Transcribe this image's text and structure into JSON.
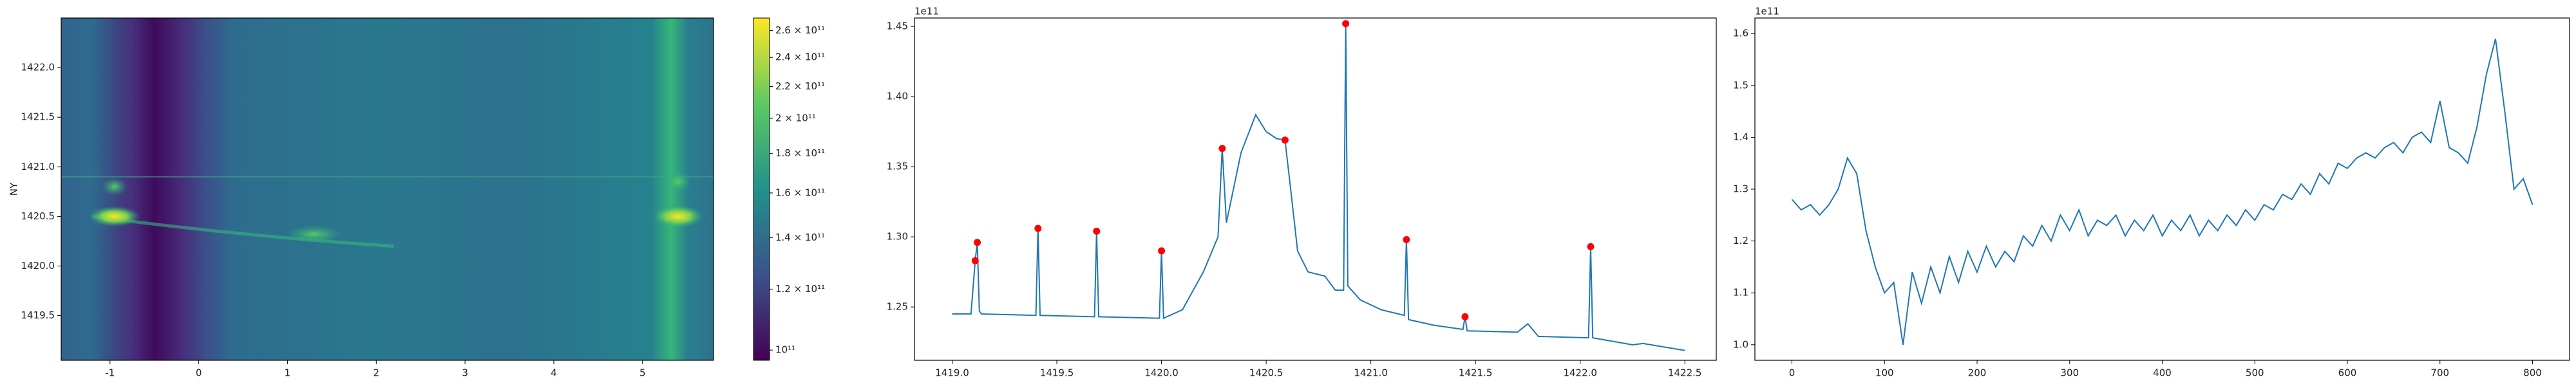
{
  "chart_data": [
    {
      "type": "heatmap",
      "ylabel": "NY",
      "colormap": "viridis",
      "xlim": [
        -1.55,
        5.8
      ],
      "xticks": [
        -1,
        0,
        1,
        2,
        3,
        4,
        5
      ],
      "ylim": [
        1419.05,
        1422.5
      ],
      "yticks": [
        {
          "value": 1419.5,
          "label": "1419.5"
        },
        {
          "value": 1420,
          "label": "1420.0"
        },
        {
          "value": 1420.5,
          "label": "1420.5"
        },
        {
          "value": 1421,
          "label": "1421.0"
        },
        {
          "value": 1421.5,
          "label": "1421.5"
        },
        {
          "value": 1422,
          "label": "1422.0"
        }
      ],
      "colorbar": {
        "scale": "log",
        "lim": [
          97000000000,
          270000000000
        ],
        "ticks": [
          {
            "value": 100000000000,
            "label": "10¹¹"
          },
          {
            "value": 120000000000,
            "label": "1.2 × 10¹¹"
          },
          {
            "value": 140000000000,
            "label": "1.4 × 10¹¹"
          },
          {
            "value": 160000000000,
            "label": "1.6 × 10¹¹"
          },
          {
            "value": 180000000000,
            "label": "1.8 × 10¹¹"
          },
          {
            "value": 200000000000,
            "label": "2 × 10¹¹"
          },
          {
            "value": 220000000000,
            "label": "2.2 × 10¹¹"
          },
          {
            "value": 240000000000,
            "label": "2.4 × 10¹¹"
          },
          {
            "value": 260000000000,
            "label": "2.6 × 10¹¹"
          }
        ]
      }
    },
    {
      "type": "line",
      "offset_text": "1e11",
      "xlim": [
        1418.82,
        1422.65
      ],
      "xticks": [
        {
          "value": 1419,
          "label": "1419.0"
        },
        1419.5,
        {
          "value": 1420,
          "label": "1420.0"
        },
        1420.5,
        {
          "value": 1421,
          "label": "1421.0"
        },
        1421.5,
        {
          "value": 1422,
          "label": "1422.0"
        },
        1422.5
      ],
      "ylim": [
        1.212,
        1.456
      ],
      "yticks": [
        1.25,
        {
          "value": 1.3,
          "label": "1.30"
        },
        1.35,
        {
          "value": 1.4,
          "label": "1.40"
        },
        1.45
      ],
      "series": [
        {
          "type": "line",
          "color": "#1f77b4",
          "x": [
            1419.0,
            1419.09,
            1419.11,
            1419.12,
            1419.13,
            1419.14,
            1419.4,
            1419.41,
            1419.42,
            1419.68,
            1419.69,
            1419.7,
            1419.99,
            1420.0,
            1420.01,
            1420.1,
            1420.2,
            1420.27,
            1420.29,
            1420.31,
            1420.38,
            1420.45,
            1420.5,
            1420.55,
            1420.59,
            1420.62,
            1420.65,
            1420.7,
            1420.78,
            1420.83,
            1420.87,
            1420.88,
            1420.89,
            1420.95,
            1421.05,
            1421.16,
            1421.17,
            1421.18,
            1421.3,
            1421.44,
            1421.45,
            1421.46,
            1421.7,
            1421.75,
            1421.8,
            1422.04,
            1422.05,
            1422.06,
            1422.25,
            1422.3,
            1422.5
          ],
          "values": [
            1.245,
            1.245,
            1.283,
            1.296,
            1.247,
            1.245,
            1.244,
            1.306,
            1.244,
            1.243,
            1.304,
            1.243,
            1.242,
            1.29,
            1.242,
            1.248,
            1.275,
            1.3,
            1.363,
            1.31,
            1.36,
            1.387,
            1.375,
            1.37,
            1.369,
            1.33,
            1.29,
            1.275,
            1.272,
            1.262,
            1.262,
            1.452,
            1.265,
            1.255,
            1.248,
            1.244,
            1.298,
            1.241,
            1.237,
            1.234,
            1.243,
            1.233,
            1.232,
            1.238,
            1.229,
            1.228,
            1.293,
            1.228,
            1.223,
            1.224,
            1.219
          ]
        },
        {
          "type": "scatter",
          "color": "red",
          "x": [
            1419.11,
            1419.12,
            1419.41,
            1419.69,
            1420.0,
            1420.29,
            1420.59,
            1420.88,
            1421.17,
            1421.45,
            1422.05
          ],
          "values": [
            1.283,
            1.296,
            1.306,
            1.304,
            1.29,
            1.363,
            1.369,
            1.452,
            1.298,
            1.243,
            1.293
          ]
        }
      ]
    },
    {
      "type": "line",
      "offset_text": "1e11",
      "xlim": [
        -40,
        840
      ],
      "xticks": [
        0,
        100,
        200,
        300,
        400,
        500,
        600,
        700,
        800
      ],
      "ylim": [
        0.97,
        1.63
      ],
      "yticks": [
        {
          "value": 1,
          "label": "1.0"
        },
        1.1,
        1.2,
        1.3,
        1.4,
        1.5,
        1.6
      ],
      "series": [
        {
          "type": "line",
          "color": "#1f77b4",
          "x": [
            0,
            10,
            20,
            30,
            40,
            50,
            60,
            70,
            80,
            90,
            100,
            110,
            120,
            130,
            140,
            150,
            160,
            170,
            180,
            190,
            200,
            210,
            220,
            230,
            240,
            250,
            260,
            270,
            280,
            290,
            300,
            310,
            320,
            330,
            340,
            350,
            360,
            370,
            380,
            390,
            400,
            410,
            420,
            430,
            440,
            450,
            460,
            470,
            480,
            490,
            500,
            510,
            520,
            530,
            540,
            550,
            560,
            570,
            580,
            590,
            600,
            610,
            620,
            630,
            640,
            650,
            660,
            670,
            680,
            690,
            700,
            710,
            720,
            730,
            740,
            750,
            760,
            770,
            780,
            790,
            800
          ],
          "values": [
            1.28,
            1.26,
            1.27,
            1.25,
            1.27,
            1.3,
            1.36,
            1.33,
            1.22,
            1.15,
            1.1,
            1.12,
            1.0,
            1.14,
            1.08,
            1.15,
            1.1,
            1.17,
            1.12,
            1.18,
            1.14,
            1.19,
            1.15,
            1.18,
            1.16,
            1.21,
            1.19,
            1.23,
            1.2,
            1.25,
            1.22,
            1.26,
            1.21,
            1.24,
            1.23,
            1.25,
            1.21,
            1.24,
            1.22,
            1.25,
            1.21,
            1.24,
            1.22,
            1.25,
            1.21,
            1.24,
            1.22,
            1.25,
            1.23,
            1.26,
            1.24,
            1.27,
            1.26,
            1.29,
            1.28,
            1.31,
            1.29,
            1.33,
            1.31,
            1.35,
            1.34,
            1.36,
            1.37,
            1.36,
            1.38,
            1.39,
            1.37,
            1.4,
            1.41,
            1.39,
            1.47,
            1.38,
            1.37,
            1.35,
            1.42,
            1.52,
            1.59,
            1.45,
            1.3,
            1.32,
            1.27
          ]
        }
      ]
    }
  ]
}
